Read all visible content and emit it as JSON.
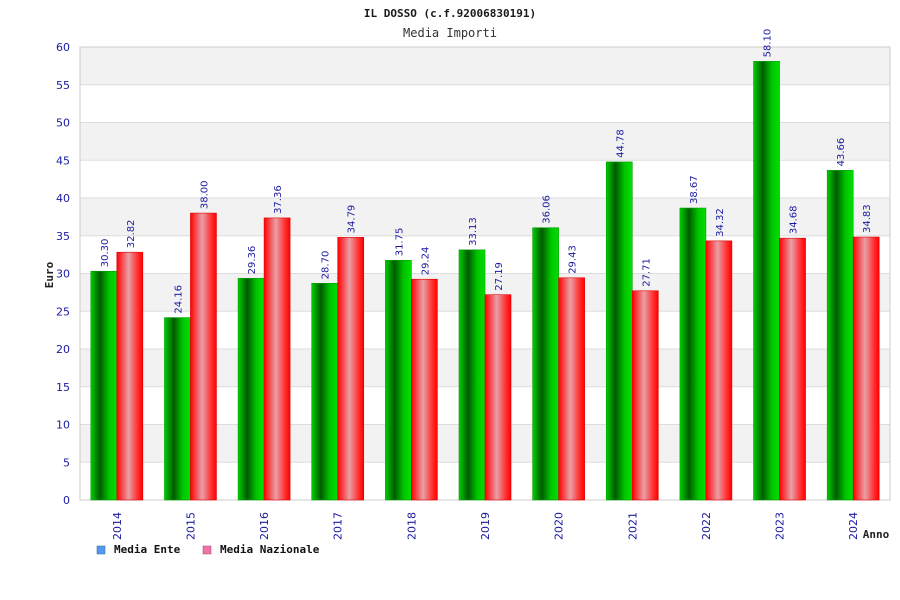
{
  "chart_data": {
    "type": "bar",
    "title": "IL DOSSO (c.f.92006830191)",
    "subtitle": "Media Importi",
    "xlabel": "Anno",
    "ylabel": "Euro",
    "ylim": [
      0,
      60
    ],
    "yticks": [
      0,
      5,
      10,
      15,
      20,
      25,
      30,
      35,
      40,
      45,
      50,
      55,
      60
    ],
    "grid": true,
    "legend_position": "bottom-left",
    "categories": [
      "2014",
      "2015",
      "2016",
      "2017",
      "2018",
      "2019",
      "2020",
      "2021",
      "2022",
      "2023",
      "2024"
    ],
    "series": [
      {
        "name": "Media Ente",
        "color": "#00b000",
        "legend_color": "#5599ee",
        "values": [
          30.3,
          24.16,
          29.36,
          28.7,
          31.75,
          33.13,
          36.06,
          44.78,
          38.67,
          58.1,
          43.66
        ],
        "labels": [
          "30.30",
          "24.16",
          "29.36",
          "28.70",
          "31.75",
          "33.13",
          "36.06",
          "44.78",
          "38.67",
          "58.10",
          "43.66"
        ]
      },
      {
        "name": "Media Nazionale",
        "color": "#ff1a1a",
        "legend_color": "#ee77aa",
        "values": [
          32.82,
          38.0,
          37.36,
          34.79,
          29.24,
          27.19,
          29.43,
          27.71,
          34.32,
          34.68,
          34.83
        ],
        "labels": [
          "32.82",
          "38.00",
          "37.36",
          "34.79",
          "29.24",
          "27.19",
          "29.43",
          "27.71",
          "34.32",
          "34.68",
          "34.83"
        ]
      }
    ]
  }
}
